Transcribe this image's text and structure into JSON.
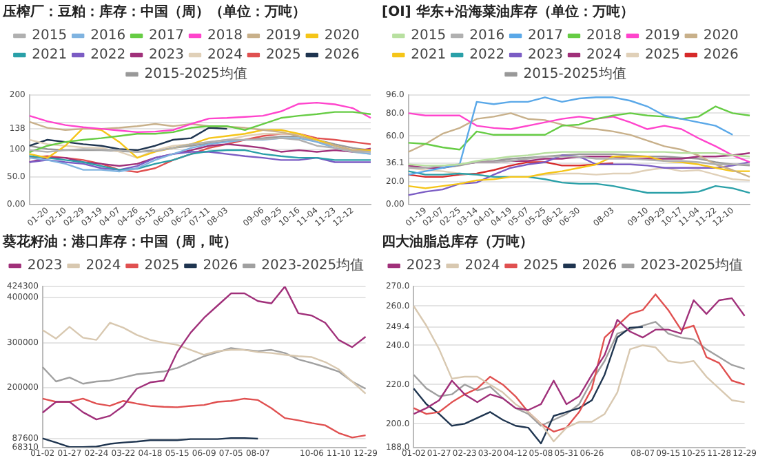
{
  "chart_data": [
    {
      "type": "line",
      "title": "压榨厂：豆粕：库存：中国（周）（单位：万吨）",
      "legend": "top",
      "grid": "y",
      "marker": "none",
      "line_style": "solid",
      "categories": [
        null,
        "01-20",
        "02-10",
        "02-29",
        "03-19",
        "04-07",
        "04-26",
        "05-15",
        "06-03",
        "06-22",
        "07-11",
        "08-03",
        null,
        "09-06",
        "09-25",
        "10-16",
        "11-04",
        "11-23",
        "12-12",
        null
      ],
      "ylim": [
        0,
        200
      ],
      "yticks": [
        {
          "value": 0,
          "label": "0.00"
        },
        {
          "value": 50,
          "label": "50.0"
        },
        100,
        138,
        {
          "value": 150,
          "label": null
        },
        200
      ],
      "series": [
        {
          "name": "2015",
          "color": "#b0b0b0",
          "values": [
            99,
            96,
            99,
            101,
            100,
            99,
            96,
            97,
            103,
            110,
            114,
            118,
            118,
            119,
            121,
            118,
            107,
            103,
            96,
            96
          ]
        },
        {
          "name": "2016",
          "color": "#7fb3e0",
          "values": [
            85,
            81,
            74,
            63,
            63,
            60,
            66,
            81,
            92,
            103,
            110,
            114,
            118,
            118,
            121,
            121,
            114,
            103,
            96,
            92
          ]
        },
        {
          "name": "2017",
          "color": "#66cc44",
          "values": [
            95,
            107,
            114,
            118,
            121,
            125,
            129,
            129,
            132,
            140,
            143,
            143,
            136,
            147,
            158,
            162,
            165,
            169,
            169,
            165
          ]
        },
        {
          "name": "2018",
          "color": "#ff44cc",
          "values": [
            162,
            152,
            145,
            141,
            138,
            135,
            132,
            133,
            136,
            147,
            157,
            158,
            160,
            162,
            170,
            184,
            186,
            183,
            176,
            158
          ]
        },
        {
          "name": "2019",
          "color": "#c8b08a",
          "values": [
            151,
            140,
            136,
            138,
            138,
            140,
            143,
            147,
            143,
            147,
            143,
            142,
            140,
            136,
            132,
            125,
            114,
            107,
            99,
            96
          ]
        },
        {
          "name": "2020",
          "color": "#f5c518",
          "values": [
            92,
            85,
            107,
            140,
            136,
            114,
            85,
            96,
            103,
            110,
            121,
            125,
            129,
            136,
            136,
            129,
            118,
            107,
            99,
            99
          ]
        },
        {
          "name": "2021",
          "color": "#2aa0a8",
          "values": [
            88,
            85,
            81,
            77,
            70,
            63,
            65,
            74,
            81,
            92,
            97,
            99,
            99,
            92,
            88,
            85,
            85,
            81,
            81,
            81
          ]
        },
        {
          "name": "2022",
          "color": "#7b5cc4",
          "values": [
            77,
            81,
            77,
            74,
            66,
            63,
            70,
            85,
            92,
            96,
            96,
            92,
            88,
            85,
            81,
            81,
            85,
            77,
            77,
            77
          ]
        },
        {
          "name": "2023",
          "color": "#a0307a",
          "values": [
            77,
            85,
            85,
            77,
            74,
            70,
            74,
            85,
            92,
            99,
            107,
            110,
            107,
            103,
            96,
            99,
            96,
            99,
            96,
            102
          ]
        },
        {
          "name": "2024",
          "color": "#e0d0b8",
          "values": [
            118,
            110,
            107,
            104,
            103,
            96,
            85,
            99,
            107,
            110,
            114,
            118,
            125,
            129,
            129,
            129,
            118,
            107,
            96,
            92
          ]
        },
        {
          "name": "2025",
          "color": "#e05050",
          "values": [
            85,
            88,
            85,
            81,
            74,
            63,
            59,
            66,
            81,
            92,
            103,
            110,
            118,
            125,
            129,
            129,
            121,
            118,
            114,
            110
          ]
        },
        {
          "name": "2026",
          "color": "#1f3550",
          "values": [
            107,
            118,
            114,
            110,
            107,
            101,
            99,
            107,
            118,
            121,
            140,
            138,
            null,
            null,
            null,
            null,
            null,
            null,
            null,
            null
          ]
        },
        {
          "name": "2015-2025均值",
          "color": "#999999",
          "values": [
            107,
            101,
            99,
            99,
            99,
            97,
            96,
            99,
            103,
            107,
            112,
            115,
            118,
            121,
            124,
            124,
            118,
            110,
            103,
            99
          ]
        }
      ]
    },
    {
      "type": "line",
      "title": "[OI] 华东+沿海菜油库存（单位：万吨）",
      "legend": "top",
      "grid": "y",
      "marker": "none",
      "line_style": "solid",
      "categories": [
        null,
        "01-19",
        "02-07",
        "02-25",
        "03-14",
        "04-01",
        "04-19",
        "05-07",
        "05-25",
        "06-12",
        "06-30",
        null,
        "08-03",
        null,
        "09-10",
        "09-29",
        "10-17",
        "11-04",
        "11-22",
        "12-10",
        null
      ],
      "ylim": [
        0,
        96
      ],
      "yticks": [
        {
          "value": 0,
          "label": "0.00"
        },
        {
          "value": 20,
          "label": "20.0"
        },
        {
          "value": 36.1,
          "label": "36.1"
        },
        {
          "value": 40,
          "label": null
        },
        {
          "value": 60,
          "label": "60.0"
        },
        {
          "value": 80,
          "label": "80.0"
        },
        {
          "value": 96,
          "label": "96.0"
        }
      ],
      "series": [
        {
          "name": "2015",
          "color": "#b8e0a0",
          "values": [
            35,
            34,
            34,
            35,
            38,
            40,
            42,
            43,
            45,
            46,
            46,
            46,
            46,
            46,
            46,
            46,
            45,
            45,
            45,
            43,
            42
          ]
        },
        {
          "name": "2016",
          "color": "#b0b0b0",
          "values": [
            32,
            32,
            34,
            35,
            37,
            37,
            38,
            40,
            42,
            42,
            42,
            40,
            40,
            40,
            39,
            38,
            38,
            37,
            35,
            35,
            35
          ]
        },
        {
          "name": "2017",
          "color": "#5aa8e8",
          "values": [
            26,
            29,
            32,
            35,
            90,
            88,
            90,
            90,
            94,
            90,
            93,
            94,
            94,
            91,
            86,
            78,
            75,
            72,
            69,
            61,
            null
          ]
        },
        {
          "name": "2018",
          "color": "#66cc44",
          "values": [
            54,
            53,
            50,
            48,
            64,
            61,
            61,
            61,
            61,
            69,
            70,
            75,
            78,
            80,
            78,
            77,
            75,
            77,
            86,
            80,
            78
          ]
        },
        {
          "name": "2019",
          "color": "#ff44cc",
          "values": [
            80,
            78,
            78,
            78,
            69,
            67,
            66,
            69,
            72,
            75,
            77,
            75,
            77,
            72,
            66,
            69,
            66,
            58,
            51,
            43,
            37
          ]
        },
        {
          "name": "2020",
          "color": "#c8b08a",
          "values": [
            46,
            53,
            62,
            67,
            75,
            77,
            80,
            75,
            74,
            70,
            67,
            66,
            64,
            61,
            56,
            51,
            48,
            43,
            35,
            30,
            24
          ]
        },
        {
          "name": "2021",
          "color": "#f5c518",
          "values": [
            16,
            14,
            16,
            18,
            21,
            22,
            24,
            24,
            27,
            29,
            32,
            35,
            42,
            42,
            42,
            38,
            37,
            35,
            32,
            29,
            29
          ]
        },
        {
          "name": "2022",
          "color": "#2aa0a8",
          "values": [
            29,
            26,
            26,
            27,
            26,
            24,
            24,
            24,
            22,
            19,
            18,
            18,
            16,
            13,
            10,
            10,
            10,
            11,
            16,
            14,
            10
          ]
        },
        {
          "name": "2023",
          "color": "#7b5cc4",
          "values": [
            8,
            11,
            13,
            18,
            19,
            26,
            32,
            35,
            37,
            43,
            42,
            35,
            35,
            35,
            34,
            32,
            32,
            32,
            32,
            34,
            37
          ]
        },
        {
          "name": "2024",
          "color": "#a0307a",
          "values": [
            34,
            32,
            32,
            35,
            37,
            37,
            38,
            38,
            40,
            40,
            42,
            42,
            42,
            40,
            40,
            40,
            40,
            42,
            42,
            43,
            45
          ]
        },
        {
          "name": "2025",
          "color": "#e0d0b8",
          "values": [
            32,
            30,
            29,
            27,
            26,
            24,
            24,
            24,
            26,
            27,
            27,
            26,
            27,
            27,
            30,
            32,
            29,
            30,
            26,
            22,
            21
          ]
        },
        {
          "name": "2026",
          "color": "#d62a2a",
          "values": [
            26,
            24,
            24,
            26,
            27,
            30,
            34,
            37,
            37,
            34,
            34,
            35,
            36.1,
            null,
            null,
            null,
            null,
            null,
            null,
            null,
            null
          ]
        },
        {
          "name": "2015-2025均值",
          "color": "#999999",
          "values": [
            32,
            32,
            32,
            34,
            37,
            38,
            40,
            41,
            42,
            43,
            44,
            44,
            44,
            43,
            42,
            42,
            41,
            40,
            37,
            35,
            34
          ]
        }
      ]
    },
    {
      "type": "line",
      "title": "葵花籽油：港口库存：中国（周，吨）",
      "legend": "top",
      "grid": "y",
      "marker": "none",
      "line_style": "solid",
      "categories": [
        "01-02",
        null,
        "01-27",
        null,
        "02-24",
        null,
        "03-22",
        null,
        "04-18",
        null,
        "05-15",
        null,
        "06-09",
        null,
        "07-05",
        null,
        "08-07",
        null,
        null,
        null,
        "10-06",
        null,
        "11-10",
        null,
        "12-29"
      ],
      "ylim": [
        68310,
        424300
      ],
      "yticks": [
        68310,
        87600,
        200000,
        300000,
        400000,
        424300
      ],
      "series": [
        {
          "name": "2023",
          "color": "#a0307a",
          "values": [
            145000,
            169000,
            169000,
            146000,
            130000,
            138000,
            160000,
            198000,
            212000,
            216000,
            279000,
            322000,
            355000,
            382000,
            409000,
            409000,
            392000,
            387000,
            424000,
            365000,
            360000,
            344000,
            306000,
            290000,
            313000
          ]
        },
        {
          "name": "2024",
          "color": "#d8c8b0",
          "values": [
            328000,
            309000,
            335000,
            311000,
            306000,
            344000,
            333000,
            317000,
            306000,
            300000,
            295000,
            284000,
            273000,
            281000,
            284000,
            284000,
            279000,
            277000,
            273000,
            270000,
            268000,
            257000,
            241000,
            214000,
            187000
          ]
        },
        {
          "name": "2025",
          "color": "#e05050",
          "values": [
            176000,
            169000,
            169000,
            176000,
            165000,
            160000,
            171000,
            165000,
            160000,
            158000,
            157000,
            160000,
            162000,
            169000,
            171000,
            176000,
            173000,
            155000,
            133000,
            128000,
            122000,
            117000,
            100000,
            90000,
            95000
          ]
        },
        {
          "name": "2026",
          "color": "#1f3550",
          "values": [
            88000,
            79000,
            69000,
            69000,
            70000,
            76000,
            79000,
            81000,
            84000,
            84000,
            84000,
            86500,
            86500,
            86500,
            88600,
            88600,
            87600,
            null,
            null,
            null,
            null,
            null,
            null,
            null,
            null
          ]
        },
        {
          "name": "2023-2025均值",
          "color": "#a0a0a0",
          "values": [
            246000,
            214000,
            223000,
            209000,
            214000,
            216000,
            223000,
            230000,
            233000,
            236000,
            244000,
            257000,
            270000,
            279000,
            288000,
            284000,
            281000,
            284000,
            277000,
            263000,
            255000,
            246000,
            236000,
            214000,
            198000
          ]
        }
      ]
    },
    {
      "type": "line",
      "title": "四大油脂总库存（万吨）",
      "legend": "top",
      "grid": "y",
      "marker": "none",
      "line_style": "solid",
      "categories": [
        "01-02",
        null,
        "01-27",
        null,
        "02-23",
        null,
        "03-20",
        null,
        "04-12",
        null,
        "05-08",
        null,
        "05-31",
        null,
        "06-26",
        null,
        null,
        null,
        "08-07",
        null,
        "09-15",
        null,
        "10-25",
        null,
        "11-28",
        null,
        "12-29"
      ],
      "ylim": [
        188,
        270
      ],
      "yticks": [
        {
          "value": 188,
          "label": "188.0"
        },
        {
          "value": 200,
          "label": "200.0"
        },
        {
          "value": 220,
          "label": "220.0"
        },
        {
          "value": 240,
          "label": "240.0"
        },
        249.4,
        {
          "value": 260,
          "label": "260.0"
        },
        {
          "value": 270,
          "label": "270.0"
        }
      ],
      "series": [
        {
          "name": "2023",
          "color": "#a0307a",
          "values": [
            205,
            208,
            212,
            222,
            215,
            211,
            215,
            213,
            208,
            207,
            210,
            222,
            210,
            214,
            225,
            235,
            253,
            247,
            244,
            248,
            248,
            246,
            263,
            256,
            263,
            264,
            255
          ]
        },
        {
          "name": "2024",
          "color": "#d8c8b0",
          "values": [
            260,
            250,
            238,
            223,
            224,
            224,
            220,
            216,
            210,
            206,
            200,
            191,
            198,
            201,
            201,
            205,
            216,
            238,
            240,
            239,
            232,
            231,
            232,
            224,
            218,
            212,
            211
          ]
        },
        {
          "name": "2025",
          "color": "#e05050",
          "values": [
            208,
            205,
            206,
            211,
            215,
            218,
            224,
            220,
            214,
            206,
            200,
            196,
            198,
            206,
            218,
            244,
            250,
            256,
            258,
            266,
            258,
            248,
            250,
            234,
            231,
            222,
            220
          ]
        },
        {
          "name": "2026",
          "color": "#1f3550",
          "values": [
            218,
            210,
            205,
            199,
            200,
            203,
            206,
            202,
            199,
            198,
            190,
            204,
            206,
            208,
            212,
            225,
            244,
            249,
            249.4,
            null,
            null,
            null,
            null,
            null,
            null,
            null,
            null
          ]
        },
        {
          "name": "2023-2025均值",
          "color": "#a0a0a0",
          "values": [
            225,
            218,
            214,
            215,
            220,
            217,
            219,
            213,
            208,
            205,
            199,
            202,
            205,
            210,
            222,
            232,
            246,
            248,
            250,
            252,
            246,
            244,
            243,
            238,
            234,
            230,
            228
          ]
        }
      ]
    }
  ]
}
